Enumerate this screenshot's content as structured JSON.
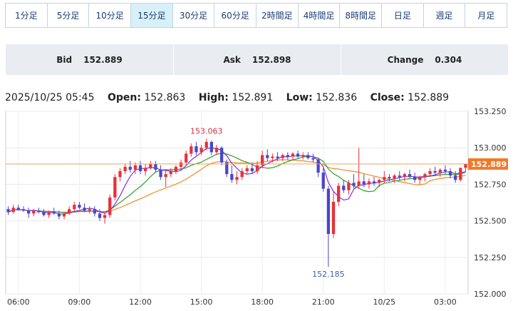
{
  "tabs": [
    {
      "label": "1分足",
      "active": false
    },
    {
      "label": "5分足",
      "active": false
    },
    {
      "label": "10分足",
      "active": false
    },
    {
      "label": "15分足",
      "active": true
    },
    {
      "label": "30分足",
      "active": false
    },
    {
      "label": "60分足",
      "active": false
    },
    {
      "label": "2時間足",
      "active": false
    },
    {
      "label": "4時間足",
      "active": false
    },
    {
      "label": "8時間足",
      "active": false
    },
    {
      "label": "日足",
      "active": false
    },
    {
      "label": "週足",
      "active": false
    },
    {
      "label": "月足",
      "active": false
    }
  ],
  "quotes": {
    "bid_label": "Bid",
    "bid_value": "152.889",
    "ask_label": "Ask",
    "ask_value": "152.898",
    "change_label": "Change",
    "change_value": "0.304"
  },
  "ohlc": {
    "datetime": "2025/10/25 05:45",
    "open_label": "Open:",
    "open_value": "152.863",
    "high_label": "High:",
    "high_value": "152.891",
    "low_label": "Low:",
    "low_value": "152.836",
    "close_label": "Close:",
    "close_value": "152.889"
  },
  "colors": {
    "up": "#e8313b",
    "down": "#4a46c9",
    "ma_short": "#8a2be2",
    "ma_mid": "#2ca02c",
    "ma_long": "#f08a24",
    "current_line": "#f0a060",
    "current_badge": "#f07a2a"
  },
  "chart_data": {
    "type": "candlestick",
    "ylim": [
      152.0,
      153.25
    ],
    "y_ticks": [
      "152.000",
      "152.250",
      "152.500",
      "152.750",
      "153.000",
      "153.250"
    ],
    "x_ticks": [
      "06:00",
      "09:00",
      "12:00",
      "15:00",
      "18:00",
      "21:00",
      "10/25",
      "03:00"
    ],
    "current_price": "152.889",
    "annotations": {
      "high_label": "153.063",
      "low_label": "152.185"
    },
    "candles": [
      [
        152.58,
        152.6,
        152.54,
        152.56
      ],
      [
        152.56,
        152.61,
        152.55,
        152.59
      ],
      [
        152.59,
        152.61,
        152.57,
        152.58
      ],
      [
        152.58,
        152.6,
        152.56,
        152.57
      ],
      [
        152.57,
        152.59,
        152.52,
        152.55
      ],
      [
        152.55,
        152.58,
        152.53,
        152.57
      ],
      [
        152.57,
        152.59,
        152.55,
        152.56
      ],
      [
        152.56,
        152.58,
        152.53,
        152.54
      ],
      [
        152.54,
        152.57,
        152.52,
        152.56
      ],
      [
        152.56,
        152.59,
        152.54,
        152.55
      ],
      [
        152.55,
        152.57,
        152.51,
        152.53
      ],
      [
        152.53,
        152.56,
        152.51,
        152.55
      ],
      [
        152.55,
        152.6,
        152.54,
        152.58
      ],
      [
        152.58,
        152.63,
        152.56,
        152.61
      ],
      [
        152.61,
        152.63,
        152.58,
        152.59
      ],
      [
        152.59,
        152.62,
        152.56,
        152.57
      ],
      [
        152.57,
        152.6,
        152.55,
        152.58
      ],
      [
        152.58,
        152.6,
        152.53,
        152.55
      ],
      [
        152.55,
        152.58,
        152.5,
        152.52
      ],
      [
        152.52,
        152.56,
        152.48,
        152.54
      ],
      [
        152.54,
        152.68,
        152.52,
        152.66
      ],
      [
        152.66,
        152.82,
        152.64,
        152.8
      ],
      [
        152.8,
        152.86,
        152.77,
        152.84
      ],
      [
        152.84,
        152.89,
        152.82,
        152.87
      ],
      [
        152.87,
        152.91,
        152.83,
        152.85
      ],
      [
        152.85,
        152.9,
        152.82,
        152.88
      ],
      [
        152.88,
        152.91,
        152.82,
        152.84
      ],
      [
        152.84,
        152.89,
        152.81,
        152.86
      ],
      [
        152.86,
        152.91,
        152.85,
        152.89
      ],
      [
        152.89,
        152.91,
        152.83,
        152.85
      ],
      [
        152.85,
        152.88,
        152.78,
        152.8
      ],
      [
        152.8,
        152.84,
        152.73,
        152.82
      ],
      [
        152.82,
        152.86,
        152.8,
        152.84
      ],
      [
        152.84,
        152.88,
        152.82,
        152.87
      ],
      [
        152.87,
        152.92,
        152.85,
        152.9
      ],
      [
        152.9,
        152.98,
        152.88,
        152.96
      ],
      [
        152.96,
        153.03,
        152.94,
        153.01
      ],
      [
        153.01,
        153.04,
        152.95,
        152.97
      ],
      [
        152.97,
        153.02,
        152.95,
        153.0
      ],
      [
        153.0,
        153.063,
        152.98,
        153.04
      ],
      [
        153.04,
        153.05,
        152.95,
        152.97
      ],
      [
        152.97,
        153.02,
        152.95,
        153.0
      ],
      [
        153.0,
        153.01,
        152.88,
        152.9
      ],
      [
        152.9,
        152.92,
        152.8,
        152.82
      ],
      [
        152.82,
        152.88,
        152.76,
        152.78
      ],
      [
        152.78,
        152.84,
        152.75,
        152.8
      ],
      [
        152.8,
        152.86,
        152.78,
        152.84
      ],
      [
        152.84,
        152.88,
        152.82,
        152.86
      ],
      [
        152.86,
        152.9,
        152.82,
        152.84
      ],
      [
        152.84,
        152.91,
        152.82,
        152.88
      ],
      [
        152.88,
        152.98,
        152.86,
        152.95
      ],
      [
        152.95,
        152.99,
        152.91,
        152.93
      ],
      [
        152.93,
        152.96,
        152.9,
        152.94
      ],
      [
        152.94,
        152.97,
        152.91,
        152.93
      ],
      [
        152.93,
        152.96,
        152.91,
        152.95
      ],
      [
        152.95,
        152.97,
        152.92,
        152.94
      ],
      [
        152.94,
        152.97,
        152.92,
        152.96
      ],
      [
        152.96,
        152.98,
        152.93,
        152.94
      ],
      [
        152.94,
        152.97,
        152.92,
        152.95
      ],
      [
        152.95,
        152.97,
        152.92,
        152.93
      ],
      [
        152.93,
        152.96,
        152.9,
        152.92
      ],
      [
        152.92,
        152.93,
        152.8,
        152.83
      ],
      [
        152.83,
        152.86,
        152.7,
        152.72
      ],
      [
        152.72,
        152.74,
        152.185,
        152.41
      ],
      [
        152.41,
        152.7,
        152.38,
        152.63
      ],
      [
        152.63,
        152.76,
        152.6,
        152.74
      ],
      [
        152.74,
        152.78,
        152.69,
        152.71
      ],
      [
        152.71,
        152.78,
        152.68,
        152.76
      ],
      [
        152.76,
        152.82,
        152.72,
        152.74
      ],
      [
        152.74,
        153.0,
        152.72,
        152.77
      ],
      [
        152.77,
        152.82,
        152.73,
        152.75
      ],
      [
        152.75,
        152.79,
        152.72,
        152.77
      ],
      [
        152.77,
        152.8,
        152.74,
        152.76
      ],
      [
        152.76,
        152.79,
        152.73,
        152.78
      ],
      [
        152.78,
        152.84,
        152.76,
        152.8
      ],
      [
        152.8,
        152.82,
        152.77,
        152.79
      ],
      [
        152.79,
        152.82,
        152.76,
        152.81
      ],
      [
        152.81,
        152.84,
        152.78,
        152.8
      ],
      [
        152.8,
        152.83,
        152.77,
        152.82
      ],
      [
        152.82,
        152.85,
        152.79,
        152.8
      ],
      [
        152.8,
        152.83,
        152.76,
        152.78
      ],
      [
        152.78,
        152.81,
        152.75,
        152.8
      ],
      [
        152.8,
        152.83,
        152.77,
        152.82
      ],
      [
        152.82,
        152.86,
        152.8,
        152.84
      ],
      [
        152.84,
        152.87,
        152.81,
        152.83
      ],
      [
        152.83,
        152.86,
        152.8,
        152.85
      ],
      [
        152.85,
        152.88,
        152.82,
        152.84
      ],
      [
        152.84,
        152.86,
        152.79,
        152.81
      ],
      [
        152.81,
        152.84,
        152.76,
        152.78
      ],
      [
        152.78,
        152.86,
        152.77,
        152.863
      ],
      [
        152.863,
        152.891,
        152.836,
        152.889
      ]
    ]
  }
}
